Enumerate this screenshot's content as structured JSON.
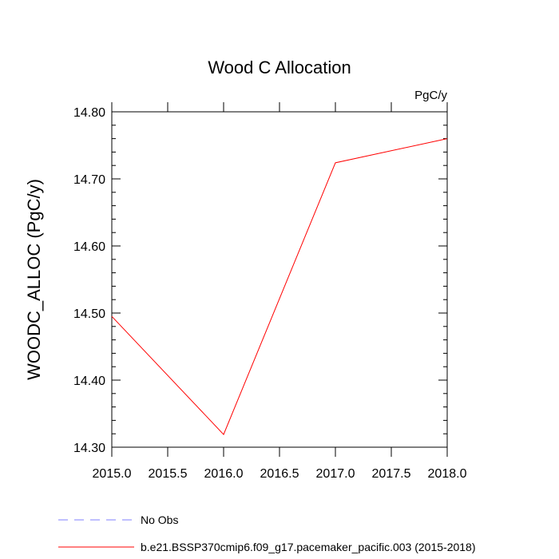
{
  "chart_data": {
    "type": "line",
    "title": "Wood C Allocation",
    "units_label": "PgC/y",
    "xlabel": "",
    "ylabel": "WOODC_ALLOC  (PgC/y)",
    "xlim": [
      2015.0,
      2018.0
    ],
    "ylim": [
      14.3,
      14.8
    ],
    "x_ticks": [
      "2015.0",
      "2015.5",
      "2016.0",
      "2016.5",
      "2017.0",
      "2017.5",
      "2018.0"
    ],
    "y_ticks": [
      "14.30",
      "14.40",
      "14.50",
      "14.60",
      "14.70",
      "14.80"
    ],
    "grid": false,
    "legend_position": "bottom",
    "series": [
      {
        "name": "b.e21.BSSP370cmip6.f09_g17.pacemaker_pacific.003 (2015-2018)",
        "color": "#ff0000",
        "style": "solid",
        "x": [
          2015,
          2016,
          2017,
          2018
        ],
        "y": [
          14.495,
          14.319,
          14.724,
          14.76
        ]
      }
    ],
    "legend": [
      {
        "label": "No Obs",
        "color": "#8080ff",
        "style": "dashed"
      },
      {
        "label": "b.e21.BSSP370cmip6.f09_g17.pacemaker_pacific.003 (2015-2018)",
        "color": "#ff0000",
        "style": "solid"
      }
    ]
  }
}
